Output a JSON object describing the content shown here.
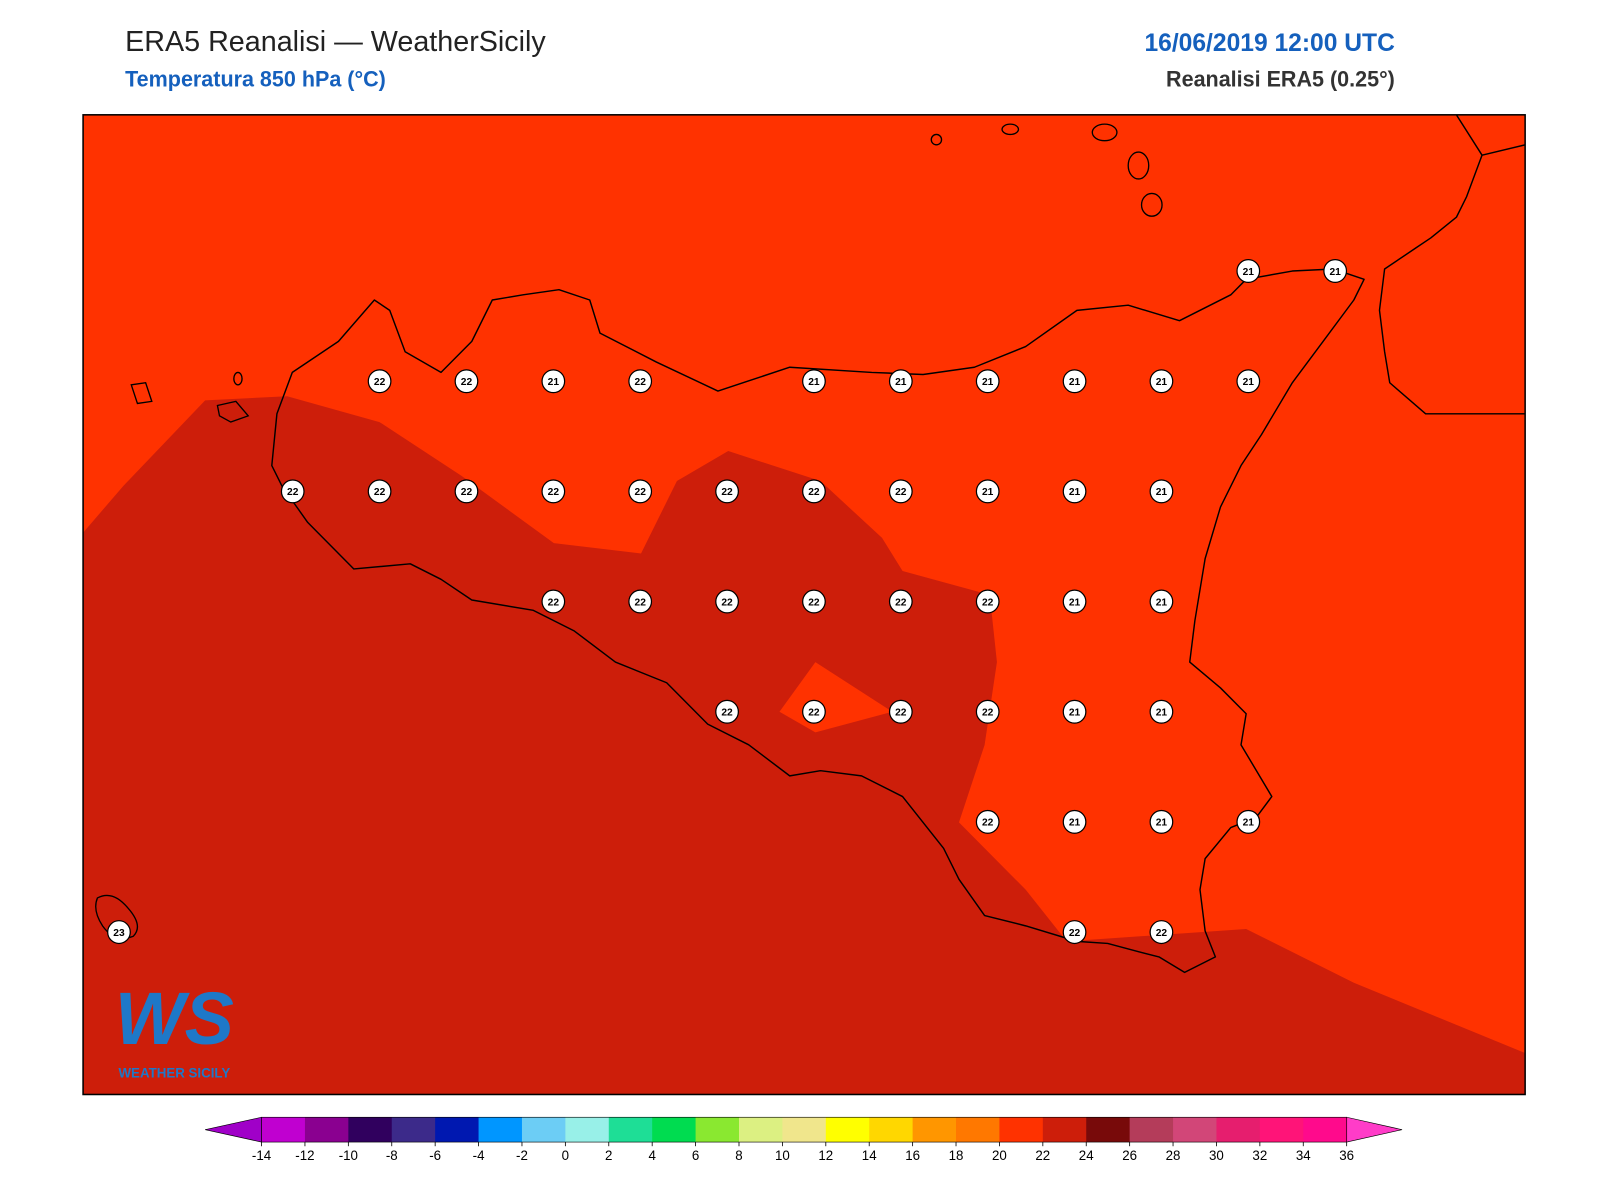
{
  "header": {
    "title": "ERA5 Reanalisi — WeatherSicily",
    "subtitle": "Temperatura 850 hPa (°C)",
    "datetime": "16/06/2019 12:00 UTC",
    "source": "Reanalisi ERA5 (0.25°)"
  },
  "map": {
    "type": "contour",
    "grid_rows": [
      {
        "values": [
          null,
          null,
          null,
          null,
          null,
          null,
          null,
          null,
          null,
          null,
          null,
          null,
          null,
          21,
          21
        ]
      },
      {
        "values": [
          null,
          null,
          null,
          22,
          22,
          21,
          22,
          null,
          21,
          21,
          21,
          21,
          21,
          21,
          null
        ]
      },
      {
        "values": [
          null,
          null,
          22,
          22,
          22,
          22,
          22,
          22,
          22,
          22,
          21,
          21,
          21,
          null,
          null
        ]
      },
      {
        "values": [
          null,
          null,
          null,
          null,
          null,
          22,
          22,
          22,
          22,
          22,
          22,
          21,
          21,
          null,
          null
        ]
      },
      {
        "values": [
          null,
          null,
          null,
          null,
          null,
          null,
          null,
          22,
          22,
          22,
          22,
          21,
          21,
          null,
          null
        ]
      },
      {
        "values": [
          null,
          null,
          null,
          null,
          null,
          null,
          null,
          null,
          null,
          null,
          22,
          21,
          21,
          21,
          null
        ]
      },
      {
        "values": [
          23,
          null,
          null,
          null,
          null,
          null,
          null,
          null,
          null,
          null,
          null,
          22,
          22,
          null,
          null
        ]
      }
    ]
  },
  "colorbar": {
    "ticks": [
      -14,
      -12,
      -10,
      -8,
      -6,
      -4,
      -2,
      0,
      2,
      4,
      6,
      8,
      10,
      12,
      14,
      16,
      18,
      20,
      22,
      24,
      26,
      28,
      30,
      32,
      34,
      36
    ],
    "colors": [
      "#c000d0",
      "#8a0090",
      "#30005e",
      "#3c2a8a",
      "#0018b0",
      "#0096ff",
      "#6ccdf5",
      "#98f0e8",
      "#1ede96",
      "#00dc50",
      "#8ae830",
      "#dcf082",
      "#f0e68c",
      "#ffff00",
      "#ffd700",
      "#ff9600",
      "#ff7800",
      "#ff3200",
      "#cd1e0a",
      "#780a0a",
      "#b43c5a",
      "#d24678",
      "#e61e6e",
      "#ff1478",
      "#ff0a8c"
    ],
    "extend_colors": [
      "#a000c8",
      "#ff3cc8"
    ]
  },
  "logo": {
    "mark": "WS",
    "name": "WEATHER SICILY"
  }
}
